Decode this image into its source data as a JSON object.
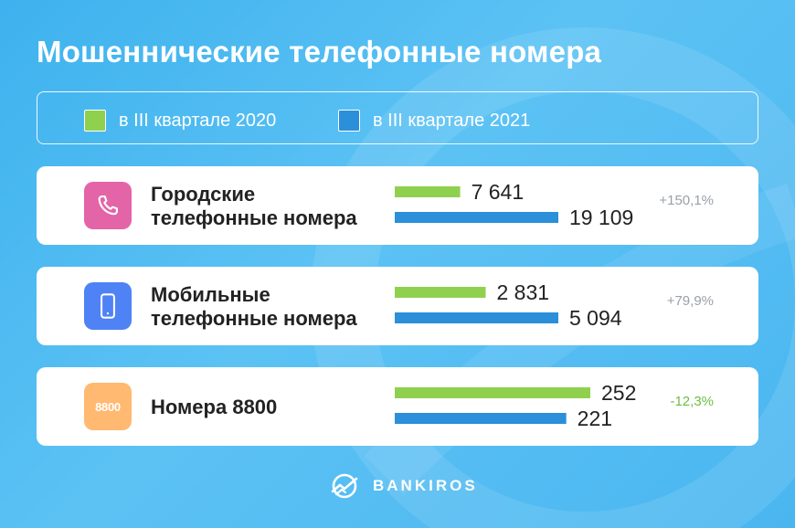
{
  "title": "Мошеннические телефонные номера",
  "colors": {
    "series_2020": "#8fd14f",
    "series_2021": "#2b8fd9",
    "change_positive": "#9aa0a6",
    "change_negative": "#6cbe45",
    "icon_city": "#e464a8",
    "icon_mobile": "#4f82f5",
    "icon_8800": "#ffb970"
  },
  "chart_data": {
    "type": "bar",
    "orientation": "horizontal",
    "title": "Мошеннические телефонные номера",
    "categories": [
      "Городские телефонные номера",
      "Мобильные телефонные номера",
      "Номера 8800"
    ],
    "series": [
      {
        "name": "в III квартале 2020",
        "values": [
          7641,
          2831,
          252
        ]
      },
      {
        "name": "в III квартале 2021",
        "values": [
          19109,
          5094,
          221
        ]
      }
    ],
    "display_values": [
      [
        "7 641",
        "19 109"
      ],
      [
        "2 831",
        "5 094"
      ],
      [
        "252",
        "221"
      ]
    ],
    "changes": [
      "+150,1%",
      "+79,9%",
      "-12,3%"
    ],
    "legend_position": "top",
    "grid": false
  },
  "legend": [
    {
      "label": "в III квартале 2020",
      "color": "#8fd14f"
    },
    {
      "label": "в III квартале 2021",
      "color": "#2b8fd9"
    }
  ],
  "cards": [
    {
      "label_line1": "Городские",
      "label_line2": "телефонные номера",
      "icon": "phone-handset-icon",
      "value_2020": "7 641",
      "value_2021": "19 109",
      "change": "+150,1%"
    },
    {
      "label_line1": "Мобильные",
      "label_line2": "телефонные номера",
      "icon": "smartphone-icon",
      "value_2020": "2 831",
      "value_2021": "5 094",
      "change": "+79,9%"
    },
    {
      "label_line1": "Номера 8800",
      "label_line2": "",
      "icon": "badge-8800-icon",
      "badge_text": "8800",
      "value_2020": "252",
      "value_2021": "221",
      "change": "-12,3%"
    }
  ],
  "footer": {
    "brand": "BANKIROS",
    "logo_icon": "bankiros-logo-icon"
  }
}
